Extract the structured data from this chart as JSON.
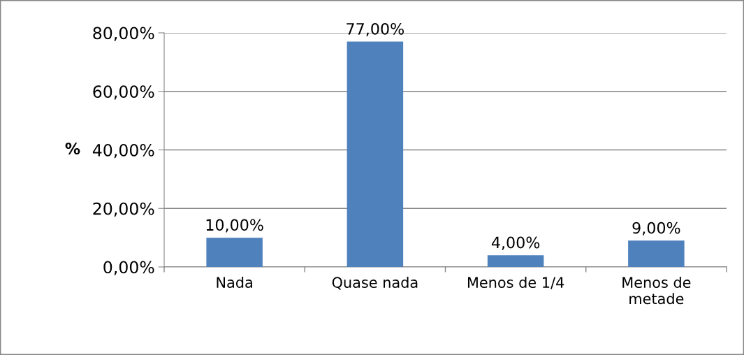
{
  "chart_data": {
    "type": "bar",
    "ylabel": "%",
    "categories": [
      "Nada",
      "Quase nada",
      "Menos de 1/4",
      "Menos de metade"
    ],
    "values": [
      10,
      77,
      4,
      9
    ],
    "color": "#4f81bd",
    "value_labels": [
      "10,00%",
      "77,00%",
      "4,00%",
      "9,00%"
    ],
    "ylim": [
      0,
      80
    ],
    "yticks": [
      {
        "value": 0,
        "label": "0,00%"
      },
      {
        "value": 20,
        "label": "20,00%"
      },
      {
        "value": 40,
        "label": "40,00%"
      },
      {
        "value": 60,
        "label": "60,00%"
      },
      {
        "value": 80,
        "label": "80,00%"
      }
    ],
    "grid": "y",
    "legend": false
  }
}
